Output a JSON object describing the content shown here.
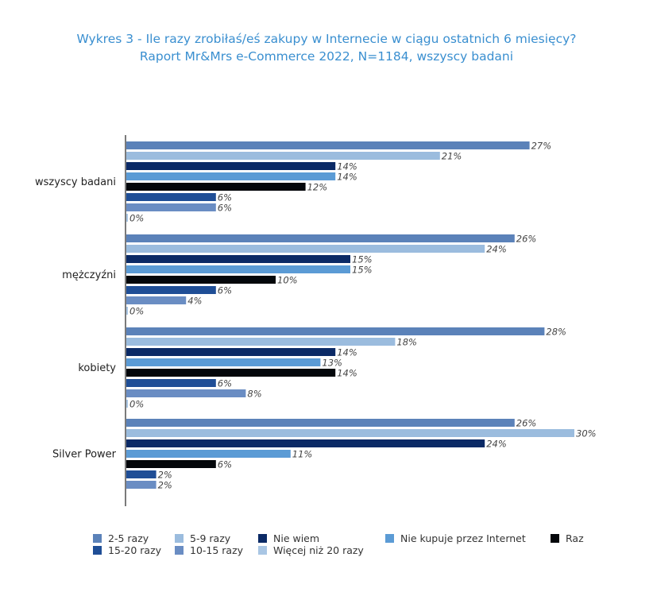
{
  "chart_data": {
    "type": "bar",
    "orientation": "horizontal",
    "title": "Wykres 3 - Ile razy zrobiłaś/eś zakupy w Internecie w ciągu ostatnich 6 miesięcy?",
    "subtitle": "Raport Mr&Mrs e-Commerce 2022, N=1184, wszyscy badani",
    "xlim": [
      0,
      31
    ],
    "unit": "%",
    "categories": [
      "wszyscy badani",
      "mężczyźni",
      "kobiety",
      "Silver Power"
    ],
    "series": [
      {
        "name": "2-5 razy",
        "color": "#5b82b9",
        "values": [
          27,
          26,
          28,
          26
        ]
      },
      {
        "name": "5-9 razy",
        "color": "#9bbcde",
        "values": [
          21,
          24,
          18,
          30
        ]
      },
      {
        "name": "Nie wiem",
        "color": "#0b2a66",
        "values": [
          14,
          15,
          14,
          24
        ]
      },
      {
        "name": "Nie kupuje przez Internet",
        "color": "#5b9bd5",
        "values": [
          14,
          15,
          13,
          11
        ]
      },
      {
        "name": "Raz",
        "color": "#04070b",
        "values": [
          12,
          10,
          14,
          6
        ]
      },
      {
        "name": "15-20 razy",
        "color": "#1f4e96",
        "values": [
          6,
          6,
          6,
          2
        ]
      },
      {
        "name": "10-15 razy",
        "color": "#6a8dc3",
        "values": [
          6,
          4,
          8,
          2
        ]
      },
      {
        "name": "Więcej niż 20 razy",
        "color": "#a9c6e4",
        "values": [
          0,
          0,
          0,
          null
        ]
      }
    ],
    "legend_order": [
      0,
      1,
      2,
      3,
      4,
      5,
      6,
      7
    ],
    "legend_position": "bottom"
  }
}
